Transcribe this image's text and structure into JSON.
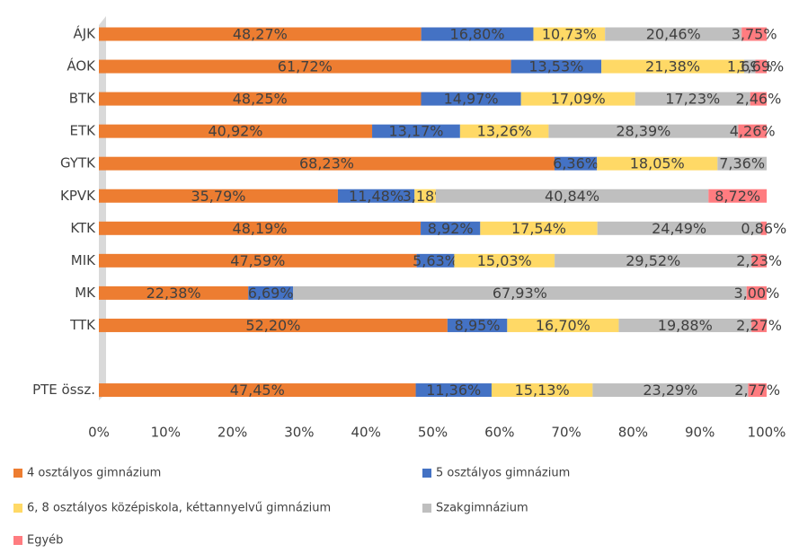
{
  "chart_data": {
    "type": "stacked_bar_horizontal",
    "categories": [
      "ÁJK",
      "ÁOK",
      "BTK",
      "ETK",
      "GYTK",
      "KPVK",
      "KTK",
      "MIK",
      "MK",
      "TTK",
      null,
      "PTE össz."
    ],
    "series": [
      {
        "name": "4 osztályos gimnázium",
        "color": "#ED7D31",
        "values": [
          48.27,
          61.72,
          48.25,
          40.92,
          68.23,
          35.79,
          48.19,
          47.59,
          22.38,
          52.2,
          null,
          47.45
        ],
        "value_labels": [
          "48,27%",
          "61,72%",
          "48,25%",
          "40,92%",
          "68,23%",
          "35,79%",
          "48,19%",
          "47,59%",
          "22,38%",
          "52,20%",
          null,
          "47,45%"
        ]
      },
      {
        "name": "5 osztályos gimnázium",
        "color": "#4472C4",
        "values": [
          16.8,
          13.53,
          14.97,
          13.17,
          6.36,
          11.48,
          8.92,
          5.63,
          6.69,
          8.95,
          null,
          11.36
        ],
        "value_labels": [
          "16,80%",
          "13,53%",
          "14,97%",
          "13,17%",
          "6,36%",
          "11,48%",
          "8,92%",
          "5,63%",
          "6,69%",
          "8,95%",
          null,
          "11,36%"
        ]
      },
      {
        "name": "6, 8 osztályos középiskola, kéttannyelvű gimnázium",
        "color": "#FFD966",
        "values": [
          10.73,
          21.38,
          17.09,
          13.26,
          18.05,
          3.18,
          17.54,
          15.03,
          null,
          16.7,
          null,
          15.13
        ],
        "value_labels": [
          "10,73%",
          "21,38%",
          "17,09%",
          "13,26%",
          "18,05%",
          "3,18%",
          "17,54%",
          "15,03%",
          null,
          "16,70%",
          null,
          "15,13%"
        ]
      },
      {
        "name": "Szakgimnázium",
        "color": "#BFBFBF",
        "values": [
          20.46,
          1.69,
          17.23,
          28.39,
          7.36,
          40.84,
          24.49,
          29.52,
          67.93,
          19.88,
          null,
          23.29
        ],
        "value_labels": [
          "20,46%",
          "1,69%",
          "17,23%",
          "28,39%",
          "7,36%",
          "40,84%",
          "24,49%",
          "29,52%",
          "67,93%",
          "19,88%",
          null,
          "23,29%"
        ]
      },
      {
        "name": "Egyéb",
        "color": "#FF7C80",
        "values": [
          3.75,
          1.69,
          2.46,
          4.26,
          null,
          8.72,
          0.86,
          2.23,
          3.0,
          2.27,
          null,
          2.77
        ],
        "value_labels": [
          "3,75%",
          "1,69%",
          "2,46%",
          "4,26%",
          null,
          "8,72%",
          "0,86%",
          "2,23%",
          "3,00%",
          "2,27%",
          null,
          "2,77%"
        ]
      }
    ],
    "xlim": [
      0,
      100
    ],
    "xticks": [
      {
        "value": 0,
        "label": "0%"
      },
      {
        "value": 10,
        "label": "10%"
      },
      {
        "value": 20,
        "label": "20%"
      },
      {
        "value": 30,
        "label": "30%"
      },
      {
        "value": 40,
        "label": "40%"
      },
      {
        "value": 50,
        "label": "50%"
      },
      {
        "value": 60,
        "label": "60%"
      },
      {
        "value": 70,
        "label": "70%"
      },
      {
        "value": 80,
        "label": "80%"
      },
      {
        "value": 90,
        "label": "90%"
      },
      {
        "value": 100,
        "label": "100%"
      }
    ],
    "legend": "bottom"
  }
}
